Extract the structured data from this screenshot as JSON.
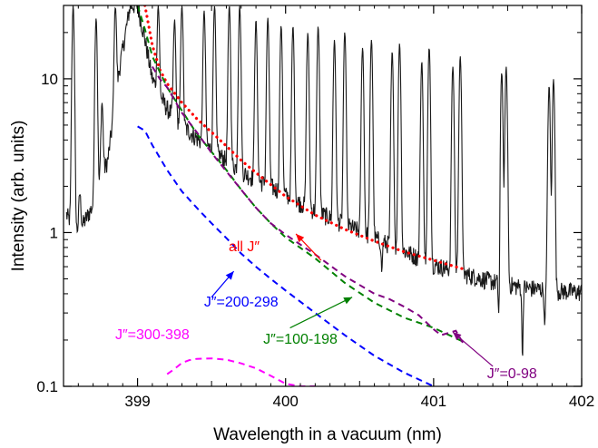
{
  "chart_data": {
    "type": "line",
    "xlabel": "Wavelength in a vacuum (nm)",
    "ylabel": "Intensity (arb. units)",
    "xlim": [
      398.5,
      402
    ],
    "ylim": [
      0.1,
      30
    ],
    "yscale": "log",
    "x_ticks": [
      399,
      400,
      401,
      402
    ],
    "x_tick_labels": [
      "399",
      "400",
      "401",
      "402"
    ],
    "y_ticks": [
      0.1,
      1,
      10
    ],
    "y_tick_labels": [
      "0.1",
      "1",
      "10"
    ],
    "grid": false,
    "legend": "none",
    "series": [
      {
        "style": "solid",
        "color": "#1a1a1a",
        "baseline": {
          "x": [
            398.52,
            398.6,
            398.7,
            398.8,
            398.88,
            398.95,
            399.0,
            399.05,
            399.1,
            399.15,
            399.2,
            399.3,
            399.4,
            399.5,
            399.6,
            399.7,
            399.8,
            399.9,
            400.0,
            400.2,
            400.4,
            400.6,
            400.8,
            401.0,
            401.2,
            401.4,
            401.6,
            401.8,
            402.0
          ],
          "y": [
            1.3,
            1.0,
            1.5,
            3.0,
            12.0,
            30.0,
            30.0,
            18.0,
            10.0,
            7.8,
            6.4,
            5.0,
            4.1,
            3.5,
            2.95,
            2.5,
            2.2,
            2.0,
            1.75,
            1.38,
            1.13,
            0.92,
            0.76,
            0.62,
            0.54,
            0.48,
            0.44,
            0.42,
            0.41
          ]
        },
        "peaks": [
          {
            "x": 398.565,
            "y": 30
          },
          {
            "x": 398.61,
            "y": 1.8
          },
          {
            "x": 398.72,
            "y": 25
          },
          {
            "x": 398.76,
            "y": 7
          },
          {
            "x": 398.85,
            "y": 30
          },
          {
            "x": 399.14,
            "y": 30
          },
          {
            "x": 399.25,
            "y": 24
          },
          {
            "x": 399.3,
            "y": 30
          },
          {
            "x": 399.45,
            "y": 28
          },
          {
            "x": 399.52,
            "y": 30
          },
          {
            "x": 399.62,
            "y": 30
          },
          {
            "x": 399.69,
            "y": 30
          },
          {
            "x": 399.8,
            "y": 24
          },
          {
            "x": 399.88,
            "y": 25
          },
          {
            "x": 399.97,
            "y": 22
          },
          {
            "x": 400.05,
            "y": 22
          },
          {
            "x": 400.15,
            "y": 20
          },
          {
            "x": 400.22,
            "y": 22
          },
          {
            "x": 400.33,
            "y": 18
          },
          {
            "x": 400.4,
            "y": 20
          },
          {
            "x": 400.52,
            "y": 16
          },
          {
            "x": 400.58,
            "y": 18
          },
          {
            "x": 400.72,
            "y": 15
          },
          {
            "x": 400.77,
            "y": 17
          },
          {
            "x": 400.92,
            "y": 13
          },
          {
            "x": 400.97,
            "y": 16
          },
          {
            "x": 401.13,
            "y": 12
          },
          {
            "x": 401.18,
            "y": 14
          },
          {
            "x": 401.46,
            "y": 11
          },
          {
            "x": 401.49,
            "y": 12
          },
          {
            "x": 401.78,
            "y": 9
          },
          {
            "x": 401.81,
            "y": 10
          }
        ],
        "dips": [
          {
            "x": 401.6,
            "y": 0.15
          },
          {
            "x": 401.44,
            "y": 0.3
          },
          {
            "x": 401.75,
            "y": 0.25
          },
          {
            "x": 400.65,
            "y": 0.55
          }
        ]
      },
      {
        "style": "dotted",
        "color": "#ff0000",
        "x": [
          399.05,
          399.1,
          399.15,
          399.2,
          399.3,
          399.4,
          399.5,
          399.6,
          399.7,
          399.8,
          399.9,
          400.0,
          400.2,
          400.4,
          400.6,
          400.8,
          401.0,
          401.2
        ],
        "y": [
          30,
          16.5,
          11.5,
          9.3,
          7.0,
          5.5,
          4.5,
          3.65,
          2.95,
          2.45,
          2.05,
          1.72,
          1.3,
          1.05,
          0.88,
          0.75,
          0.66,
          0.58
        ]
      },
      {
        "style": "dashed",
        "color": "#008000",
        "x": [
          399.0,
          399.05,
          399.1,
          399.2,
          399.3,
          399.4,
          399.5,
          399.6,
          399.7,
          399.8,
          399.9,
          400.0,
          400.2,
          400.4,
          400.6,
          400.8,
          401.0,
          401.2
        ],
        "y": [
          30,
          21,
          14,
          8.8,
          6.2,
          4.4,
          3.35,
          2.55,
          1.9,
          1.45,
          1.15,
          0.93,
          0.68,
          0.47,
          0.35,
          0.28,
          0.24,
          0.195
        ]
      },
      {
        "style": "dashed",
        "color": "#800080",
        "x": [
          399.1,
          399.15,
          399.2,
          399.3,
          399.4,
          399.5,
          399.6,
          399.7,
          399.8,
          399.9,
          400.0,
          400.2,
          400.4,
          400.6,
          400.7,
          400.8,
          400.9,
          401.0,
          401.05,
          401.15,
          401.2
        ],
        "y": [
          12,
          10,
          8.8,
          6.0,
          4.5,
          3.3,
          2.5,
          1.9,
          1.45,
          1.15,
          0.97,
          0.72,
          0.52,
          0.4,
          0.37,
          0.33,
          0.29,
          0.235,
          0.215,
          0.23,
          0.19
        ]
      },
      {
        "style": "dashed",
        "color": "#0000ff",
        "x": [
          399.0,
          399.05,
          399.1,
          399.2,
          399.3,
          399.4,
          399.5,
          399.6,
          399.7,
          399.8,
          399.9,
          400.0,
          400.2,
          400.4,
          400.6,
          400.8,
          401.0
        ],
        "y": [
          4.9,
          4.6,
          3.7,
          2.55,
          1.85,
          1.45,
          1.15,
          0.92,
          0.73,
          0.6,
          0.5,
          0.42,
          0.3,
          0.215,
          0.158,
          0.123,
          0.098
        ]
      },
      {
        "style": "dashed",
        "color": "#ff00ff",
        "x": [
          399.2,
          399.25,
          399.3,
          399.35,
          399.4,
          399.5,
          399.6,
          399.7,
          399.8,
          399.9,
          400.0,
          400.1,
          400.2
        ],
        "y": [
          0.12,
          0.13,
          0.142,
          0.148,
          0.151,
          0.152,
          0.149,
          0.141,
          0.131,
          0.117,
          0.104,
          0.094,
          0.086
        ]
      }
    ],
    "annotations": [
      {
        "text": "all J″",
        "color": "#ff0000",
        "tx": 399.72,
        "ty": 0.8,
        "ax": 399.6,
        "ay": 1.2,
        "arrow": [
          400.24,
          0.66,
          400.07,
          0.98
        ]
      },
      {
        "text": "J″=200-298",
        "color": "#0000ff",
        "tx": 399.7,
        "ty": 0.35,
        "ax": 399.3,
        "ay": 0.35,
        "arrow": [
          399.5,
          0.38,
          399.65,
          0.56
        ]
      },
      {
        "text": "J″=100-198",
        "color": "#008000",
        "tx": 400.1,
        "ty": 0.2,
        "ax": 399.68,
        "ay": 0.2,
        "arrow": [
          400.03,
          0.24,
          400.45,
          0.38
        ]
      },
      {
        "text": "J″=300-398",
        "color": "#ff00ff",
        "tx": 399.1,
        "ty": 0.215,
        "ax": 398.78,
        "ay": 0.215,
        "arrow": null
      },
      {
        "text": "J″=0-98",
        "color": "#800080",
        "tx": 401.53,
        "ty": 0.12,
        "ax": 401.2,
        "ay": 0.12,
        "arrow": [
          401.4,
          0.135,
          401.13,
          0.225
        ]
      }
    ]
  }
}
